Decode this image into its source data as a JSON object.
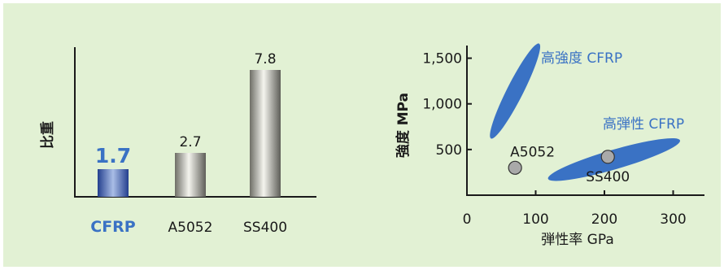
{
  "colors": {
    "panel_bg": "#e2f1d4",
    "cfrp_blue": "#3a72c4",
    "axis": "#1a1a1a",
    "text": "#1a1a1a",
    "marker_fill": "#a9a9a9"
  },
  "chart_data": [
    {
      "type": "bar",
      "title": "",
      "xlabel": "",
      "ylabel": "比重",
      "ylim": [
        0,
        9
      ],
      "categories": [
        "CFRP",
        "A5052",
        "SS400"
      ],
      "values": [
        1.7,
        2.7,
        7.8
      ],
      "value_labels": [
        "1.7",
        "2.7",
        "7.8"
      ],
      "highlight": "CFRP",
      "grid": false
    },
    {
      "type": "scatter",
      "title": "",
      "xlabel": "弾性率 GPa",
      "ylabel": "強度 MPa",
      "xlim": [
        0,
        350
      ],
      "ylim": [
        0,
        1800
      ],
      "x_ticks": [
        0,
        100,
        200,
        300
      ],
      "x_tick_labels": [
        "0",
        "100",
        "200",
        "300"
      ],
      "y_ticks": [
        500,
        1000,
        1500
      ],
      "y_tick_labels": [
        "500",
        "1,000",
        "1,500"
      ],
      "grid": false,
      "regions": [
        {
          "name": "高強度 CFRP",
          "from": [
            35,
            620
          ],
          "to": [
            105,
            1660
          ],
          "half_width": 10
        },
        {
          "name": "高弾性 CFRP",
          "from": [
            118,
            180
          ],
          "to": [
            310,
            600
          ],
          "half_width": 12
        }
      ],
      "points": [
        {
          "name": "A5052",
          "x": 70,
          "y": 300
        },
        {
          "name": "SS400",
          "x": 205,
          "y": 420
        }
      ]
    }
  ]
}
